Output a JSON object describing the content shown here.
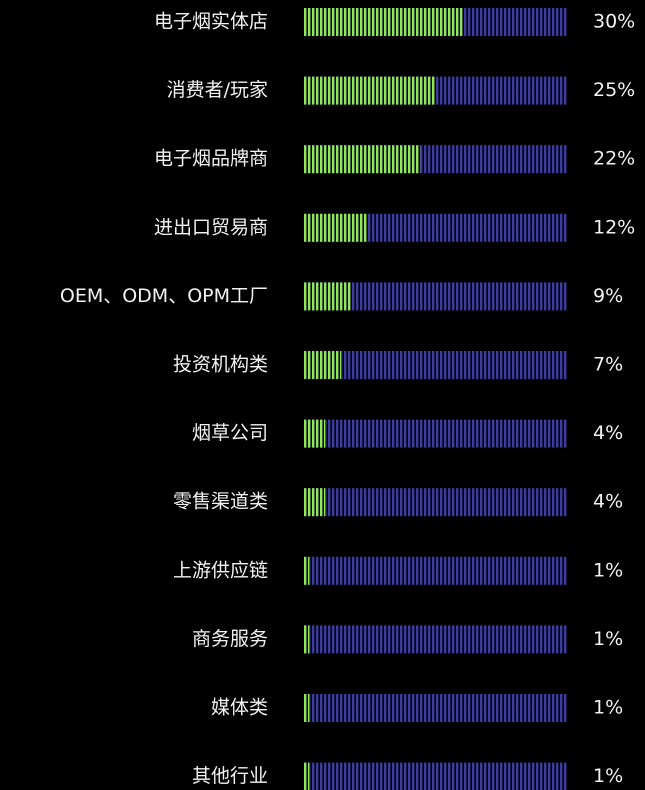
{
  "chart_data": {
    "type": "bar",
    "orientation": "horizontal",
    "categories": [
      "电子烟实体店",
      "消费者/玩家",
      "电子烟品牌商",
      "进出口贸易商",
      "OEM、ODM、OPM工厂",
      "投资机构类",
      "烟草公司",
      "零售渠道类",
      "上游供应链",
      "商务服务",
      "媒体类",
      "其他行业"
    ],
    "values": [
      30,
      25,
      22,
      12,
      9,
      7,
      4,
      4,
      1,
      1,
      1,
      1
    ],
    "value_labels": [
      "30%",
      "25%",
      "22%",
      "12%",
      "9%",
      "7%",
      "4%",
      "4%",
      "1%",
      "1%",
      "1%",
      "1%"
    ],
    "xlim": [
      0,
      50
    ],
    "color": "#8ee65a",
    "track_color": "#3b3ba0"
  }
}
